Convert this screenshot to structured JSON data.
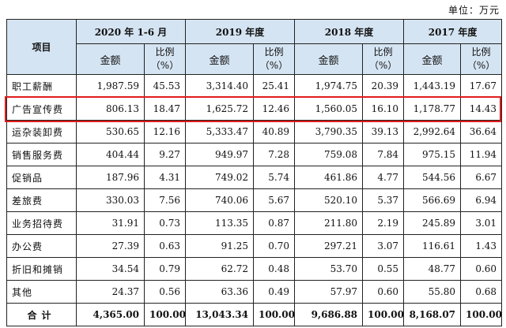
{
  "unit": "单位：万元",
  "header": {
    "item": "项目",
    "periods": [
      "2020 年 1-6 月",
      "2019 年度",
      "2018 年度",
      "2017 年度"
    ],
    "amount": "金额",
    "ratio_line1": "比例",
    "ratio_line2": "（%）"
  },
  "rows": [
    {
      "name": "职工薪酬",
      "vals": [
        "1,987.59",
        "45.53",
        "3,314.40",
        "25.41",
        "1,974.75",
        "20.39",
        "1,443.19",
        "17.67"
      ]
    },
    {
      "name": "广告宣传费",
      "vals": [
        "806.13",
        "18.47",
        "1,625.72",
        "12.46",
        "1,560.05",
        "16.10",
        "1,178.77",
        "14.43"
      ]
    },
    {
      "name": "运杂装卸费",
      "vals": [
        "530.65",
        "12.16",
        "5,333.47",
        "40.89",
        "3,790.35",
        "39.13",
        "2,992.64",
        "36.64"
      ]
    },
    {
      "name": "销售服务费",
      "vals": [
        "404.44",
        "9.27",
        "949.97",
        "7.28",
        "759.08",
        "7.84",
        "975.15",
        "11.94"
      ]
    },
    {
      "name": "促销品",
      "vals": [
        "187.96",
        "4.31",
        "749.02",
        "5.74",
        "461.86",
        "4.77",
        "544.56",
        "6.67"
      ]
    },
    {
      "name": "差旅费",
      "vals": [
        "330.03",
        "7.56",
        "740.06",
        "5.67",
        "520.10",
        "5.37",
        "566.69",
        "6.94"
      ]
    },
    {
      "name": "业务招待费",
      "vals": [
        "31.91",
        "0.73",
        "113.35",
        "0.87",
        "211.80",
        "2.19",
        "245.89",
        "3.01"
      ]
    },
    {
      "name": "办公费",
      "vals": [
        "27.39",
        "0.63",
        "91.25",
        "0.70",
        "297.21",
        "3.07",
        "116.61",
        "1.43"
      ]
    },
    {
      "name": "折旧和摊销",
      "vals": [
        "34.54",
        "0.79",
        "62.72",
        "0.48",
        "53.70",
        "0.55",
        "48.77",
        "0.60"
      ]
    },
    {
      "name": "其他",
      "vals": [
        "24.37",
        "0.56",
        "63.36",
        "0.49",
        "57.97",
        "0.60",
        "55.80",
        "0.68"
      ]
    }
  ],
  "total": {
    "name": "合计",
    "vals": [
      "4,365.00",
      "100.00",
      "13,043.34",
      "100.00",
      "9,686.88",
      "100.00",
      "8,168.07",
      "100.00"
    ]
  },
  "highlight_color": "#e21b1b"
}
